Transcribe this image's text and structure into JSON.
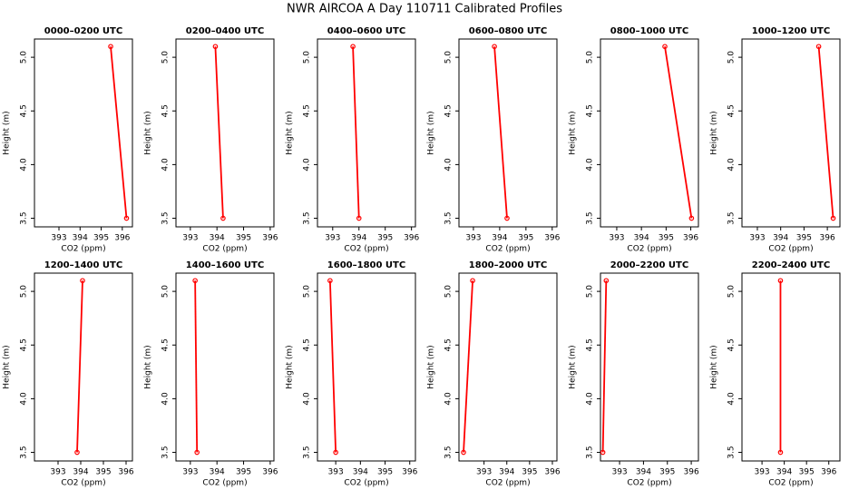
{
  "title": "NWR AIRCOA A  Day 110711  Calibrated Profiles",
  "chart_data": [
    {
      "type": "line",
      "title": "0000–0200 UTC",
      "xlabel": "CO2 (ppm)",
      "ylabel": "Height (m)",
      "x": [
        395.45,
        396.2
      ],
      "y": [
        5.1,
        3.5
      ],
      "color": "#ff0000",
      "xlim": [
        391.84,
        396.48
      ],
      "ylim": [
        3.42,
        5.17
      ],
      "xticks": [
        393,
        394,
        395,
        396
      ],
      "yticks": [
        3.5,
        {
          "value": 4,
          "label": "4.0"
        },
        4.5,
        {
          "value": 5,
          "label": "5.0"
        }
      ]
    },
    {
      "type": "line",
      "title": "0200–0400 UTC",
      "xlabel": "CO2 (ppm)",
      "ylabel": "Height (m)",
      "x": [
        393.94,
        394.23
      ],
      "y": [
        5.1,
        3.5
      ],
      "color": "#ff0000",
      "xlim": [
        392.46,
        396.14
      ],
      "ylim": [
        3.42,
        5.17
      ],
      "xticks": [
        393,
        394,
        395,
        396
      ],
      "yticks": [
        3.5,
        {
          "value": 4,
          "label": "4.0"
        },
        4.5,
        {
          "value": 5,
          "label": "5.0"
        }
      ]
    },
    {
      "type": "line",
      "title": "0400–0600 UTC",
      "xlabel": "CO2 (ppm)",
      "ylabel": "Height (m)",
      "x": [
        393.77,
        394.0
      ],
      "y": [
        5.1,
        3.5
      ],
      "color": "#ff0000",
      "xlim": [
        392.42,
        396.15
      ],
      "ylim": [
        3.42,
        5.17
      ],
      "xticks": [
        393,
        394,
        395,
        396
      ],
      "yticks": [
        3.5,
        {
          "value": 4,
          "label": "4.0"
        },
        4.5,
        {
          "value": 5,
          "label": "5.0"
        }
      ]
    },
    {
      "type": "line",
      "title": "0600–0800 UTC",
      "xlabel": "CO2 (ppm)",
      "ylabel": "Height (m)",
      "x": [
        393.8,
        394.28
      ],
      "y": [
        5.1,
        3.5
      ],
      "color": "#ff0000",
      "xlim": [
        392.45,
        396.18
      ],
      "ylim": [
        3.42,
        5.17
      ],
      "xticks": [
        393,
        394,
        395,
        396
      ],
      "yticks": [
        3.5,
        {
          "value": 4,
          "label": "4.0"
        },
        4.5,
        {
          "value": 5,
          "label": "5.0"
        }
      ]
    },
    {
      "type": "line",
      "title": "0800–1000 UTC",
      "xlabel": "CO2 (ppm)",
      "ylabel": "Height (m)",
      "x": [
        394.95,
        396.03
      ],
      "y": [
        5.1,
        3.5
      ],
      "color": "#ff0000",
      "xlim": [
        392.34,
        396.31
      ],
      "ylim": [
        3.42,
        5.17
      ],
      "xticks": [
        393,
        394,
        395,
        396
      ],
      "yticks": [
        3.5,
        {
          "value": 4,
          "label": "4.0"
        },
        4.5,
        {
          "value": 5,
          "label": "5.0"
        }
      ]
    },
    {
      "type": "line",
      "title": "1000–1200 UTC",
      "xlabel": "CO2 (ppm)",
      "ylabel": "Height (m)",
      "x": [
        395.63,
        396.25
      ],
      "y": [
        5.1,
        3.5
      ],
      "color": "#ff0000",
      "xlim": [
        392.34,
        396.54
      ],
      "ylim": [
        3.42,
        5.17
      ],
      "xticks": [
        393,
        394,
        395,
        396
      ],
      "yticks": [
        3.5,
        {
          "value": 4,
          "label": "4.0"
        },
        4.5,
        {
          "value": 5,
          "label": "5.0"
        }
      ]
    },
    {
      "type": "line",
      "title": "1200–1400 UTC",
      "xlabel": "CO2 (ppm)",
      "ylabel": "Height (m)",
      "x": [
        394.08,
        393.84
      ],
      "y": [
        5.1,
        3.5
      ],
      "color": "#ff0000",
      "xlim": [
        391.96,
        396.28
      ],
      "ylim": [
        3.42,
        5.17
      ],
      "xticks": [
        393,
        394,
        395,
        396
      ],
      "yticks": [
        3.5,
        {
          "value": 4,
          "label": "4.0"
        },
        4.5,
        {
          "value": 5,
          "label": "5.0"
        }
      ]
    },
    {
      "type": "line",
      "title": "1400–1600 UTC",
      "xlabel": "CO2 (ppm)",
      "ylabel": "Height (m)",
      "x": [
        393.18,
        393.25
      ],
      "y": [
        5.1,
        3.5
      ],
      "color": "#ff0000",
      "xlim": [
        392.46,
        396.14
      ],
      "ylim": [
        3.42,
        5.17
      ],
      "xticks": [
        393,
        394,
        395,
        396
      ],
      "yticks": [
        3.5,
        {
          "value": 4,
          "label": "4.0"
        },
        4.5,
        {
          "value": 5,
          "label": "5.0"
        }
      ]
    },
    {
      "type": "line",
      "title": "1600–1800 UTC",
      "xlabel": "CO2 (ppm)",
      "ylabel": "Height (m)",
      "x": [
        392.77,
        393.0
      ],
      "y": [
        5.1,
        3.5
      ],
      "color": "#ff0000",
      "xlim": [
        392.26,
        396.23
      ],
      "ylim": [
        3.42,
        5.17
      ],
      "xticks": [
        393,
        394,
        395,
        396
      ],
      "yticks": [
        3.5,
        {
          "value": 4,
          "label": "4.0"
        },
        4.5,
        {
          "value": 5,
          "label": "5.0"
        }
      ]
    },
    {
      "type": "line",
      "title": "1800–2000 UTC",
      "xlabel": "CO2 (ppm)",
      "ylabel": "Height (m)",
      "x": [
        392.5,
        392.1
      ],
      "y": [
        5.1,
        3.5
      ],
      "color": "#ff0000",
      "xlim": [
        391.9,
        396.2
      ],
      "ylim": [
        3.42,
        5.17
      ],
      "xticks": [
        393,
        394,
        395,
        396
      ],
      "yticks": [
        3.5,
        {
          "value": 4,
          "label": "4.0"
        },
        4.5,
        {
          "value": 5,
          "label": "5.0"
        }
      ]
    },
    {
      "type": "line",
      "title": "2000–2200 UTC",
      "xlabel": "CO2 (ppm)",
      "ylabel": "Height (m)",
      "x": [
        392.44,
        392.3
      ],
      "y": [
        5.1,
        3.5
      ],
      "color": "#ff0000",
      "xlim": [
        392.2,
        396.3
      ],
      "ylim": [
        3.42,
        5.17
      ],
      "xticks": [
        393,
        394,
        395,
        396
      ],
      "yticks": [
        3.5,
        {
          "value": 4,
          "label": "4.0"
        },
        4.5,
        {
          "value": 5,
          "label": "5.0"
        }
      ]
    },
    {
      "type": "line",
      "title": "2200–2400 UTC",
      "xlabel": "CO2 (ppm)",
      "ylabel": "Height (m)",
      "x": [
        393.83,
        393.83
      ],
      "y": [
        5.1,
        3.5
      ],
      "color": "#ff0000",
      "xlim": [
        392.1,
        396.5
      ],
      "ylim": [
        3.42,
        5.17
      ],
      "xticks": [
        393,
        394,
        395,
        396
      ],
      "yticks": [
        3.5,
        {
          "value": 4,
          "label": "4.0"
        },
        4.5,
        {
          "value": 5,
          "label": "5.0"
        }
      ]
    }
  ]
}
